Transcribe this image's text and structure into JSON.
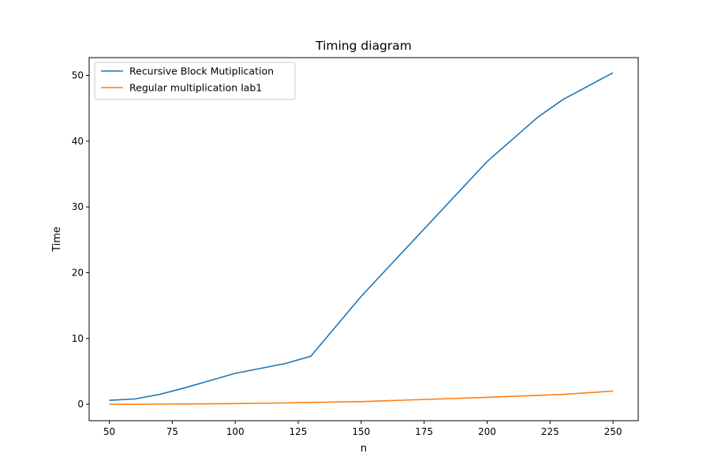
{
  "chart_data": {
    "type": "line",
    "title": "Timing diagram",
    "xlabel": "n",
    "ylabel": "Time",
    "xlim": [
      42,
      260
    ],
    "ylim": [
      -2.5,
      52.7
    ],
    "xticks": [
      50,
      75,
      100,
      125,
      150,
      175,
      200,
      225,
      250
    ],
    "yticks": [
      0,
      10,
      20,
      30,
      40,
      50
    ],
    "grid": false,
    "legend_position": "top-left",
    "series": [
      {
        "name": "Recursive Block Mutiplication",
        "color": "#1f77b4",
        "x": [
          50,
          60,
          70,
          80,
          100,
          120,
          130,
          150,
          200,
          220,
          230,
          250
        ],
        "y": [
          0.6,
          0.8,
          1.5,
          2.5,
          4.7,
          6.2,
          7.3,
          16.4,
          36.9,
          43.6,
          46.3,
          50.4
        ]
      },
      {
        "name": "Regular multiplication lab1",
        "color": "#ff7f0e",
        "x": [
          50,
          60,
          70,
          80,
          100,
          120,
          130,
          150,
          200,
          220,
          230,
          250
        ],
        "y": [
          0.0,
          0.0,
          0.02,
          0.04,
          0.1,
          0.2,
          0.28,
          0.4,
          1.05,
          1.35,
          1.5,
          2.0
        ]
      }
    ]
  }
}
